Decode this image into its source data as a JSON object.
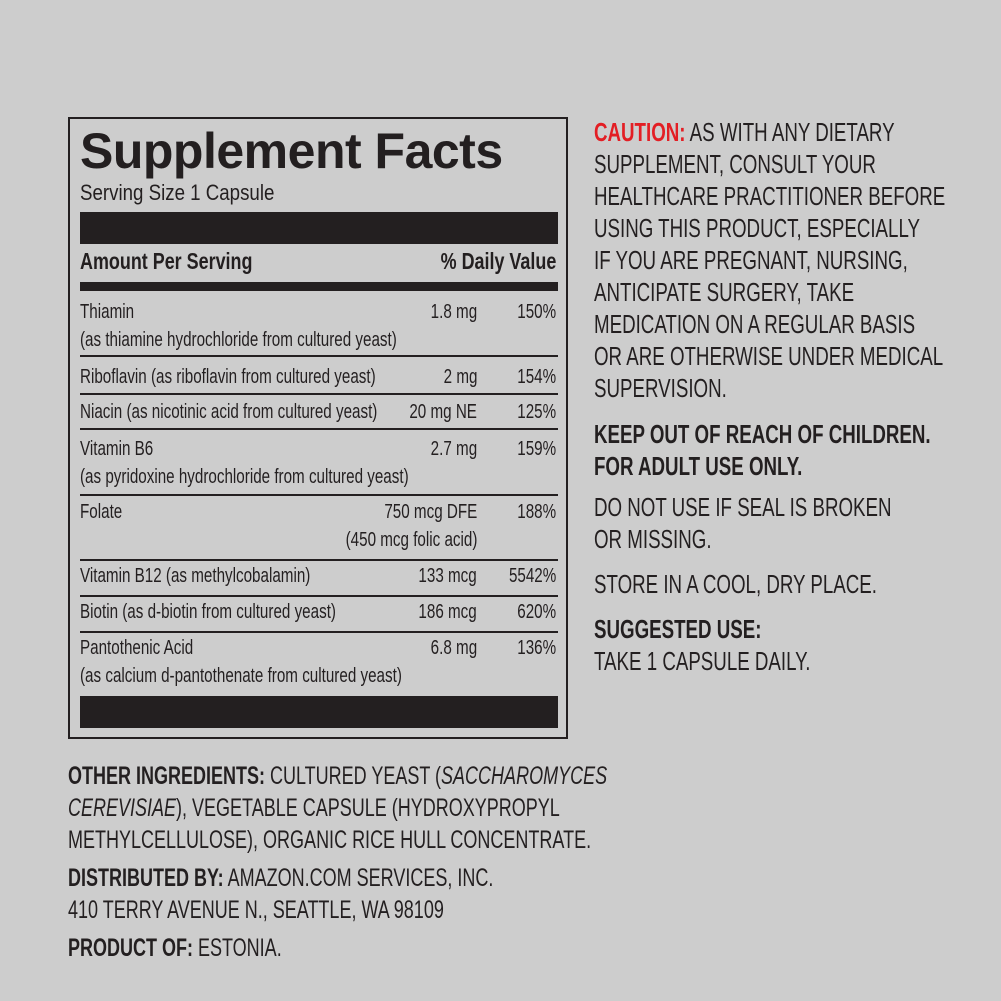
{
  "panel": {
    "title": "Supplement Facts",
    "serving_size": "Serving Size 1 Capsule",
    "header_amount": "Amount Per Serving",
    "header_dv": "% Daily Value",
    "rows": [
      {
        "name": "Thiamin",
        "sub": "(as thiamine hydrochloride from cultured yeast)",
        "amount": "1.8 mg",
        "dv": "150%"
      },
      {
        "name": "Riboflavin (as riboflavin from cultured yeast)",
        "amount": "2 mg",
        "dv": "154%"
      },
      {
        "name": "Niacin (as nicotinic acid from cultured yeast)",
        "amount": "20 mg NE",
        "dv": "125%"
      },
      {
        "name": "Vitamin B6",
        "sub": "(as pyridoxine hydrochloride from cultured yeast)",
        "amount": "2.7 mg",
        "dv": "159%"
      },
      {
        "name": "Folate",
        "amount": "750 mcg DFE",
        "amount_sub": "(450 mcg folic acid)",
        "dv": "188%"
      },
      {
        "name": "Vitamin B12 (as methylcobalamin)",
        "amount": "133 mcg",
        "dv": "5542%"
      },
      {
        "name": "Biotin (as d-biotin from cultured yeast)",
        "amount": "186 mcg",
        "dv": "620%"
      },
      {
        "name": "Pantothenic Acid",
        "sub": "(as calcium d-pantothenate from cultured yeast)",
        "amount": "6.8 mg",
        "dv": "136%"
      }
    ]
  },
  "caution": {
    "label": "CAUTION:",
    "lines": [
      " AS WITH ANY DIETARY",
      "SUPPLEMENT, CONSULT YOUR",
      "HEALTHCARE PRACTITIONER BEFORE",
      "USING THIS PRODUCT, ESPECIALLY",
      "IF YOU ARE PREGNANT, NURSING,",
      "ANTICIPATE SURGERY, TAKE",
      "MEDICATION ON A REGULAR BASIS",
      "OR ARE OTHERWISE UNDER MEDICAL",
      "SUPERVISION."
    ],
    "color": "#e31e24"
  },
  "warnings": {
    "keep_out": [
      "KEEP OUT OF REACH OF CHILDREN.",
      "FOR ADULT USE ONLY."
    ],
    "seal": [
      "DO NOT USE IF SEAL IS BROKEN",
      "OR MISSING."
    ],
    "store": "STORE IN A COOL, DRY PLACE.",
    "suggested_label": "SUGGESTED USE:",
    "suggested_text": "TAKE 1 CAPSULE DAILY."
  },
  "footer": {
    "ingredients_label": "OTHER INGREDIENTS:",
    "ingredients_l1": " CULTURED YEAST (",
    "ingredients_l1_italic": "SACCHAROMYCES",
    "ingredients_l2_italic": "CEREVISIAE",
    "ingredients_l2": "), VEGETABLE CAPSULE (HYDROXYPROPYL",
    "ingredients_l3": "METHYLCELLULOSE), ORGANIC RICE HULL CONCENTRATE.",
    "distributed_label": "DISTRIBUTED BY:",
    "distributed_l1": " AMAZON.COM SERVICES, INC.",
    "distributed_l2": "410 TERRY AVENUE N., SEATTLE, WA 98109",
    "product_label": "PRODUCT OF:",
    "product_text": " ESTONIA."
  }
}
